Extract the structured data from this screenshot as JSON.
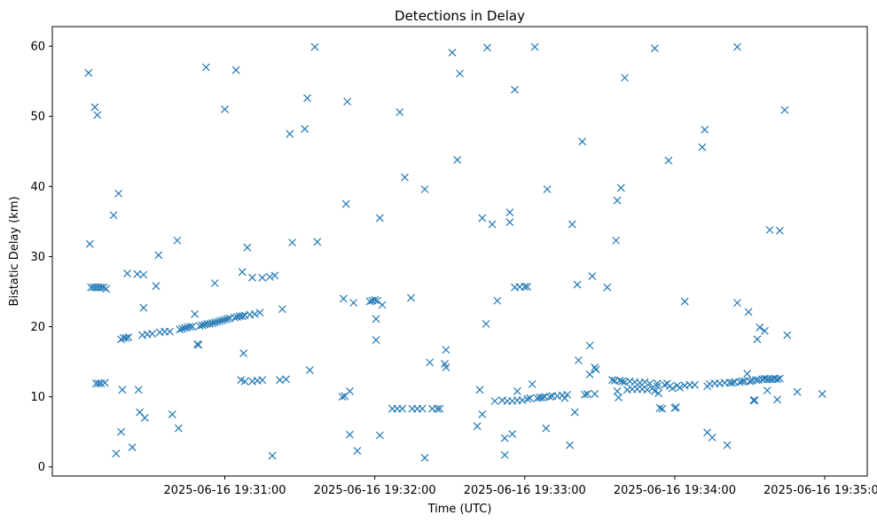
{
  "chart_data": {
    "type": "scatter",
    "title": "Detections in Delay",
    "xlabel": "Time (UTC)",
    "ylabel": "Bistatic Delay (km)",
    "marker": "x",
    "color": "#1f77b4",
    "grid": false,
    "xlim_seconds_after_19_30": [
      -9,
      317
    ],
    "ylim": [
      -1.3,
      62.8
    ],
    "x_ticks": [
      {
        "value_s": 60,
        "label": "2025-06-16 19:31:00"
      },
      {
        "value_s": 120,
        "label": "2025-06-16 19:32:00"
      },
      {
        "value_s": 180,
        "label": "2025-06-16 19:33:00"
      },
      {
        "value_s": 240,
        "label": "2025-06-16 19:34:00"
      },
      {
        "value_s": 300,
        "label": "2025-06-16 19:35:00"
      }
    ],
    "y_ticks": [
      0,
      10,
      20,
      30,
      40,
      50,
      60
    ],
    "points": [
      [
        5.5,
        56.2
      ],
      [
        8,
        51.3
      ],
      [
        9,
        50.2
      ],
      [
        6,
        31.8
      ],
      [
        6.5,
        25.6
      ],
      [
        7.5,
        25.6
      ],
      [
        8.5,
        25.6
      ],
      [
        9.5,
        25.6
      ],
      [
        10.5,
        25.6
      ],
      [
        11.5,
        25.6
      ],
      [
        12.5,
        25.4
      ],
      [
        8.5,
        11.9
      ],
      [
        9.5,
        11.9
      ],
      [
        10.5,
        11.9
      ],
      [
        12,
        12
      ],
      [
        15.5,
        35.9
      ],
      [
        17.5,
        39
      ],
      [
        18.5,
        18.2
      ],
      [
        19.5,
        18.4
      ],
      [
        20.5,
        18.4
      ],
      [
        21.5,
        18.5
      ],
      [
        16.5,
        1.9
      ],
      [
        18.5,
        5
      ],
      [
        19,
        11
      ],
      [
        21,
        27.6
      ],
      [
        25,
        27.5
      ],
      [
        27.5,
        27.4
      ],
      [
        27.5,
        22.7
      ],
      [
        23,
        2.8
      ],
      [
        25.5,
        11
      ],
      [
        26,
        7.8
      ],
      [
        28,
        7
      ],
      [
        27,
        18.8
      ],
      [
        29,
        18.9
      ],
      [
        31,
        19
      ],
      [
        32.5,
        25.8
      ],
      [
        33.5,
        30.2
      ],
      [
        34,
        19.2
      ],
      [
        36,
        19.3
      ],
      [
        38,
        19.3
      ],
      [
        39,
        7.5
      ],
      [
        41,
        32.3
      ],
      [
        41.5,
        5.5
      ],
      [
        42,
        19.6
      ],
      [
        43,
        19.7
      ],
      [
        44,
        19.8
      ],
      [
        45,
        19.9
      ],
      [
        46,
        20
      ],
      [
        47,
        20
      ],
      [
        48,
        21.8
      ],
      [
        49,
        17.5
      ],
      [
        49.5,
        17.4
      ],
      [
        50,
        20.1
      ],
      [
        51,
        20.2
      ],
      [
        52,
        20.3
      ],
      [
        53,
        20.4
      ],
      [
        54,
        20.4
      ],
      [
        55,
        20.5
      ],
      [
        56,
        20.6
      ],
      [
        57,
        20.7
      ],
      [
        58,
        20.8
      ],
      [
        59,
        20.9
      ],
      [
        60,
        21
      ],
      [
        61,
        21.1
      ],
      [
        62,
        21.2
      ],
      [
        64,
        21.3
      ],
      [
        65,
        21.4
      ],
      [
        66,
        21.5
      ],
      [
        67,
        21.5
      ],
      [
        68,
        21.6
      ],
      [
        70,
        21.7
      ],
      [
        72,
        21.8
      ],
      [
        74,
        22
      ],
      [
        52.5,
        57
      ],
      [
        56,
        26.2
      ],
      [
        60,
        51
      ],
      [
        64.5,
        56.6
      ],
      [
        66.5,
        12.4
      ],
      [
        67,
        27.8
      ],
      [
        67.5,
        16.2
      ],
      [
        68,
        12.2
      ],
      [
        69,
        31.3
      ],
      [
        71,
        27
      ],
      [
        71,
        12.2
      ],
      [
        73,
        12.3
      ],
      [
        75,
        27
      ],
      [
        75,
        12.4
      ],
      [
        78,
        27.1
      ],
      [
        80,
        27.3
      ],
      [
        79,
        1.6
      ],
      [
        82,
        12.4
      ],
      [
        83,
        22.5
      ],
      [
        84.5,
        12.5
      ],
      [
        86,
        47.5
      ],
      [
        87,
        32
      ],
      [
        92,
        48.2
      ],
      [
        93,
        52.6
      ],
      [
        94,
        13.8
      ],
      [
        96,
        59.9
      ],
      [
        97,
        32.1
      ],
      [
        107,
        10
      ],
      [
        107.5,
        24
      ],
      [
        108,
        10.1
      ],
      [
        108.5,
        37.5
      ],
      [
        109,
        52.1
      ],
      [
        110,
        4.6
      ],
      [
        110,
        10.8
      ],
      [
        111.5,
        23.4
      ],
      [
        113,
        2.3
      ],
      [
        118,
        23.6
      ],
      [
        119,
        23.7
      ],
      [
        120,
        23.8
      ],
      [
        120.5,
        21.1
      ],
      [
        120.5,
        18.1
      ],
      [
        121,
        23.7
      ],
      [
        122,
        4.5
      ],
      [
        122,
        35.5
      ],
      [
        123,
        23.1
      ],
      [
        127,
        8.3
      ],
      [
        129,
        8.3
      ],
      [
        131,
        8.3
      ],
      [
        130,
        50.6
      ],
      [
        132,
        41.3
      ],
      [
        134.5,
        24.1
      ],
      [
        135,
        8.3
      ],
      [
        137,
        8.3
      ],
      [
        139,
        8.3
      ],
      [
        140,
        39.6
      ],
      [
        140,
        1.3
      ],
      [
        142,
        14.9
      ],
      [
        143,
        8.3
      ],
      [
        145,
        8.3
      ],
      [
        146,
        8.3
      ],
      [
        148,
        14.7
      ],
      [
        148.5,
        14.2
      ],
      [
        148.5,
        16.7
      ],
      [
        151,
        59.1
      ],
      [
        153,
        43.8
      ],
      [
        154,
        56.1
      ],
      [
        161,
        5.8
      ],
      [
        162,
        11
      ],
      [
        163,
        7.5
      ],
      [
        163,
        35.5
      ],
      [
        164.5,
        20.4
      ],
      [
        165,
        59.8
      ],
      [
        167,
        34.6
      ],
      [
        168,
        9.4
      ],
      [
        169,
        23.7
      ],
      [
        171,
        9.5
      ],
      [
        172,
        4.1
      ],
      [
        172,
        1.7
      ],
      [
        173,
        9.4
      ],
      [
        174,
        36.3
      ],
      [
        174,
        34.9
      ],
      [
        175,
        4.7
      ],
      [
        175,
        9.4
      ],
      [
        176,
        25.6
      ],
      [
        176,
        53.8
      ],
      [
        177,
        10.8
      ],
      [
        177,
        9.5
      ],
      [
        178,
        25.7
      ],
      [
        179,
        9.5
      ],
      [
        180,
        25.7
      ],
      [
        181,
        25.7
      ],
      [
        181,
        9.7
      ],
      [
        182,
        9.8
      ],
      [
        183,
        11.8
      ],
      [
        184,
        59.9
      ],
      [
        185,
        9.8
      ],
      [
        186,
        9.9
      ],
      [
        187,
        9.9
      ],
      [
        188,
        10
      ],
      [
        188.5,
        5.5
      ],
      [
        189,
        39.6
      ],
      [
        190,
        10
      ],
      [
        191,
        10.1
      ],
      [
        193,
        10.1
      ],
      [
        195,
        10.2
      ],
      [
        196,
        9.8
      ],
      [
        197,
        10.3
      ],
      [
        198,
        3.1
      ],
      [
        199,
        34.6
      ],
      [
        200,
        7.8
      ],
      [
        201,
        26
      ],
      [
        201.5,
        15.2
      ],
      [
        203,
        46.4
      ],
      [
        204,
        10.3
      ],
      [
        205,
        10.4
      ],
      [
        206,
        17.3
      ],
      [
        206,
        13.2
      ],
      [
        207,
        27.2
      ],
      [
        208,
        10.4
      ],
      [
        208,
        14.2
      ],
      [
        208.5,
        13.9
      ],
      [
        213,
        25.6
      ],
      [
        215,
        12.4
      ],
      [
        216,
        12.3
      ],
      [
        216.5,
        32.3
      ],
      [
        217,
        38
      ],
      [
        217,
        10.8
      ],
      [
        217.5,
        9.9
      ],
      [
        218,
        12.3
      ],
      [
        218.5,
        39.8
      ],
      [
        219,
        12.2
      ],
      [
        220,
        55.5
      ],
      [
        220,
        12.1
      ],
      [
        221,
        11
      ],
      [
        222,
        12.2
      ],
      [
        223,
        11.1
      ],
      [
        224,
        12.1
      ],
      [
        225,
        11.1
      ],
      [
        226,
        12
      ],
      [
        227,
        11.1
      ],
      [
        228,
        12.1
      ],
      [
        229,
        11
      ],
      [
        230,
        11.9
      ],
      [
        231,
        11.2
      ],
      [
        232,
        59.7
      ],
      [
        232,
        10.8
      ],
      [
        233,
        11.9
      ],
      [
        233,
        11.5
      ],
      [
        233.5,
        10.5
      ],
      [
        234,
        8.4
      ],
      [
        235,
        8.3
      ],
      [
        236,
        11.7
      ],
      [
        237,
        11.9
      ],
      [
        237.5,
        43.7
      ],
      [
        238,
        11.5
      ],
      [
        239,
        11.2
      ],
      [
        240,
        8.4
      ],
      [
        240.5,
        8.5
      ],
      [
        241,
        11.6
      ],
      [
        242,
        11.3
      ],
      [
        244,
        11.6
      ],
      [
        244,
        23.6
      ],
      [
        246,
        11.7
      ],
      [
        248,
        11.7
      ],
      [
        251,
        45.6
      ],
      [
        252,
        48.1
      ],
      [
        253,
        11.5
      ],
      [
        253,
        4.9
      ],
      [
        254,
        11.8
      ],
      [
        255,
        4.2
      ],
      [
        256,
        11.9
      ],
      [
        258,
        11.9
      ],
      [
        260,
        12
      ],
      [
        261,
        3.1
      ],
      [
        262,
        12
      ],
      [
        263,
        12
      ],
      [
        264,
        12.1
      ],
      [
        265,
        59.9
      ],
      [
        265,
        23.4
      ],
      [
        266,
        12.1
      ],
      [
        267,
        12.2
      ],
      [
        268,
        12.2
      ],
      [
        269,
        13.3
      ],
      [
        269.5,
        22.1
      ],
      [
        270,
        12.2
      ],
      [
        271,
        12.3
      ],
      [
        271.5,
        9.5
      ],
      [
        272,
        9.5
      ],
      [
        272.5,
        12.4
      ],
      [
        273,
        18.2
      ],
      [
        273.5,
        12.4
      ],
      [
        274,
        19.9
      ],
      [
        275,
        12.5
      ],
      [
        276,
        19.4
      ],
      [
        276,
        12.6
      ],
      [
        277,
        12.5
      ],
      [
        277,
        10.9
      ],
      [
        278,
        33.8
      ],
      [
        278,
        12.5
      ],
      [
        279,
        12.5
      ],
      [
        280,
        12.6
      ],
      [
        281,
        9.6
      ],
      [
        281,
        12.5
      ],
      [
        282,
        33.7
      ],
      [
        282,
        12.6
      ],
      [
        284,
        50.9
      ],
      [
        285,
        18.8
      ],
      [
        289,
        10.7
      ],
      [
        299,
        10.4
      ]
    ]
  }
}
